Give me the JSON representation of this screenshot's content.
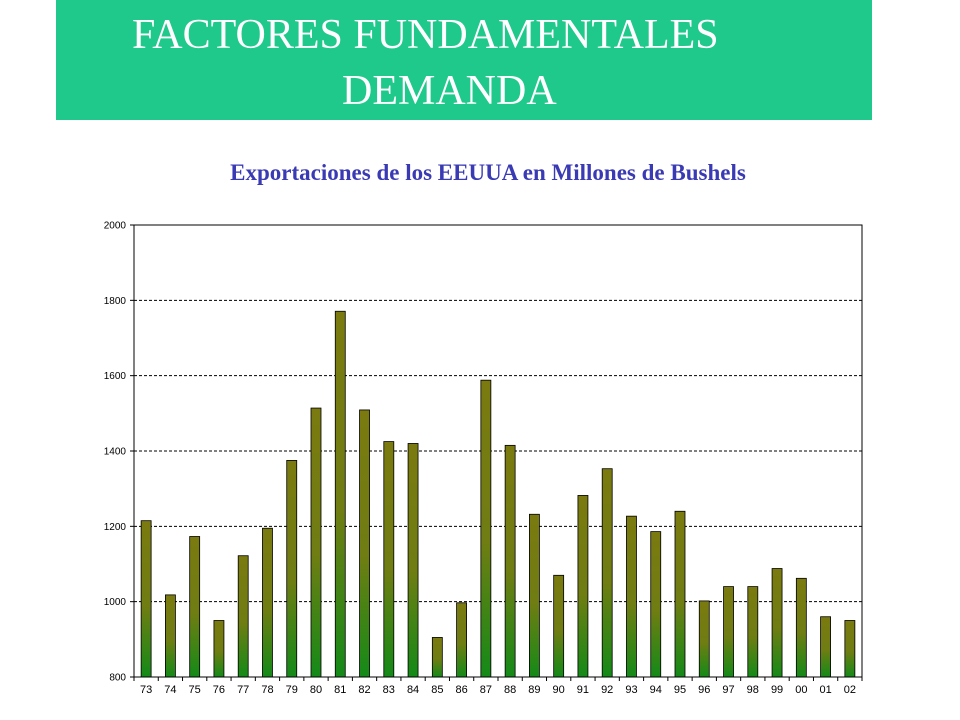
{
  "header": {
    "title_line1": "FACTORES FUNDAMENTALES",
    "title_line2": "DEMANDA"
  },
  "chart_data": {
    "type": "bar",
    "title": "Exportaciones de los EEUUA en Millones de Bushels",
    "xlabel": "",
    "ylabel": "",
    "ylim": [
      800,
      2000
    ],
    "yticks": [
      800,
      1000,
      1200,
      1400,
      1600,
      1800,
      2000
    ],
    "grid": true,
    "categories": [
      "73",
      "74",
      "75",
      "76",
      "77",
      "78",
      "79",
      "80",
      "81",
      "82",
      "83",
      "84",
      "85",
      "86",
      "87",
      "88",
      "89",
      "90",
      "91",
      "92",
      "93",
      "94",
      "95",
      "96",
      "97",
      "98",
      "99",
      "00",
      "01",
      "02"
    ],
    "values": [
      1215,
      1018,
      1173,
      950,
      1122,
      1195,
      1375,
      1514,
      1771,
      1509,
      1425,
      1420,
      905,
      997,
      1588,
      1415,
      1232,
      1070,
      1282,
      1353,
      1227,
      1186,
      1240,
      1002,
      1040,
      1040,
      1088,
      1062,
      960,
      950
    ],
    "colors": {
      "bar_top": "#7a7a10",
      "bar_bottom": "#138a18",
      "gridline": "#000000"
    }
  }
}
